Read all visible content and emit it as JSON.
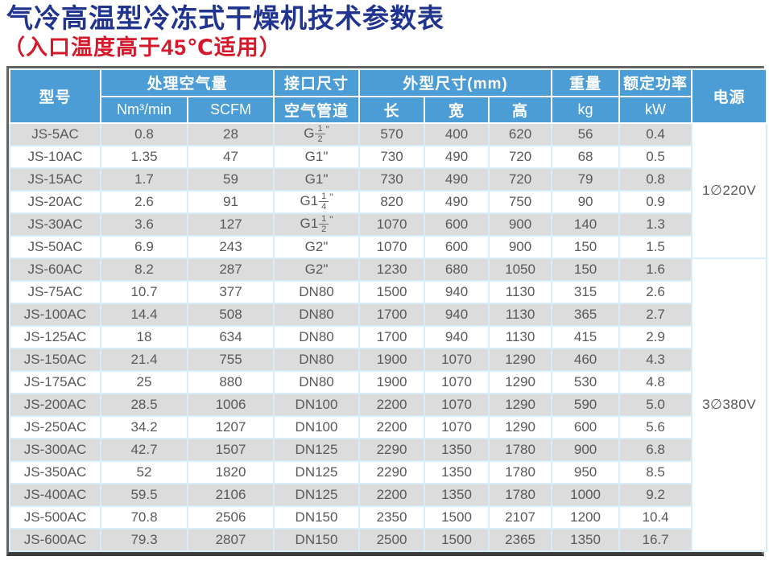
{
  "page": {
    "title": "气冷高温型冷冻式干燥机技术参数表",
    "subtitle": "（入口温度高于45℃适用）",
    "colors": {
      "title_blue": "#203490",
      "subtitle_red": "#d6182b",
      "header_blue": "#4c9cd5",
      "stripe_gray": "#dcdcdc",
      "body_text": "#595959",
      "cell_separator": "#d9edf9"
    }
  },
  "table": {
    "headers": {
      "model": "型号",
      "air_volume": "处理空气量",
      "air_volume_nm": "Nm³/min",
      "air_volume_scfm": "SCFM",
      "port_size": "接口尺寸",
      "air_pipe": "空气管道",
      "dimensions": "外型尺寸(mm)",
      "length": "长",
      "width": "宽",
      "height": "高",
      "weight": "重量",
      "weight_unit": "kg",
      "rated_power": "额定功率",
      "power_unit": "kW",
      "power_supply": "电源"
    },
    "rows": [
      {
        "model": "JS-5AC",
        "nm3": "0.8",
        "scfm": "28",
        "pipe": {
          "base": "G",
          "frac": "1/2"
        },
        "length": "570",
        "width": "400",
        "height": "620",
        "kg": "56",
        "kw": "0.4"
      },
      {
        "model": "JS-10AC",
        "nm3": "1.35",
        "scfm": "47",
        "pipe": {
          "base": "G1\""
        },
        "length": "730",
        "width": "490",
        "height": "720",
        "kg": "68",
        "kw": "0.5"
      },
      {
        "model": "JS-15AC",
        "nm3": "1.7",
        "scfm": "59",
        "pipe": {
          "base": "G1\""
        },
        "length": "730",
        "width": "490",
        "height": "720",
        "kg": "79",
        "kw": "0.8"
      },
      {
        "model": "JS-20AC",
        "nm3": "2.6",
        "scfm": "91",
        "pipe": {
          "base": "G1",
          "frac": "1/4"
        },
        "length": "820",
        "width": "490",
        "height": "750",
        "kg": "90",
        "kw": "0.9"
      },
      {
        "model": "JS-30AC",
        "nm3": "3.6",
        "scfm": "127",
        "pipe": {
          "base": "G1",
          "frac": "1/2"
        },
        "length": "1070",
        "width": "600",
        "height": "900",
        "kg": "140",
        "kw": "1.3"
      },
      {
        "model": "JS-50AC",
        "nm3": "6.9",
        "scfm": "243",
        "pipe": {
          "base": "G2\""
        },
        "length": "1070",
        "width": "600",
        "height": "900",
        "kg": "150",
        "kw": "1.5"
      },
      {
        "model": "JS-60AC",
        "nm3": "8.2",
        "scfm": "287",
        "pipe": {
          "base": "G2\""
        },
        "length": "1230",
        "width": "680",
        "height": "1050",
        "kg": "150",
        "kw": "1.6"
      },
      {
        "model": "JS-75AC",
        "nm3": "10.7",
        "scfm": "377",
        "pipe": {
          "base": "DN80"
        },
        "length": "1500",
        "width": "940",
        "height": "1130",
        "kg": "315",
        "kw": "2.6"
      },
      {
        "model": "JS-100AC",
        "nm3": "14.4",
        "scfm": "508",
        "pipe": {
          "base": "DN80"
        },
        "length": "1700",
        "width": "940",
        "height": "1130",
        "kg": "365",
        "kw": "2.7"
      },
      {
        "model": "JS-125AC",
        "nm3": "18",
        "scfm": "634",
        "pipe": {
          "base": "DN80"
        },
        "length": "1700",
        "width": "940",
        "height": "1130",
        "kg": "415",
        "kw": "2.9"
      },
      {
        "model": "JS-150AC",
        "nm3": "21.4",
        "scfm": "755",
        "pipe": {
          "base": "DN80"
        },
        "length": "1900",
        "width": "1070",
        "height": "1290",
        "kg": "460",
        "kw": "4.3"
      },
      {
        "model": "JS-175AC",
        "nm3": "25",
        "scfm": "880",
        "pipe": {
          "base": "DN80"
        },
        "length": "1900",
        "width": "1070",
        "height": "1290",
        "kg": "530",
        "kw": "4.8"
      },
      {
        "model": "JS-200AC",
        "nm3": "28.5",
        "scfm": "1006",
        "pipe": {
          "base": "DN100"
        },
        "length": "2200",
        "width": "1070",
        "height": "1290",
        "kg": "590",
        "kw": "5.0"
      },
      {
        "model": "JS-250AC",
        "nm3": "34.2",
        "scfm": "1207",
        "pipe": {
          "base": "DN100"
        },
        "length": "2200",
        "width": "1070",
        "height": "1290",
        "kg": "600",
        "kw": "5.6"
      },
      {
        "model": "JS-300AC",
        "nm3": "42.7",
        "scfm": "1507",
        "pipe": {
          "base": "DN125"
        },
        "length": "2290",
        "width": "1350",
        "height": "1780",
        "kg": "900",
        "kw": "6.8"
      },
      {
        "model": "JS-350AC",
        "nm3": "52",
        "scfm": "1820",
        "pipe": {
          "base": "DN125"
        },
        "length": "2290",
        "width": "1350",
        "height": "1780",
        "kg": "950",
        "kw": "8.5"
      },
      {
        "model": "JS-400AC",
        "nm3": "59.5",
        "scfm": "2106",
        "pipe": {
          "base": "DN125"
        },
        "length": "2200",
        "width": "1350",
        "height": "1780",
        "kg": "1000",
        "kw": "9.2"
      },
      {
        "model": "JS-500AC",
        "nm3": "70.8",
        "scfm": "2506",
        "pipe": {
          "base": "DN150"
        },
        "length": "2350",
        "width": "1500",
        "height": "2107",
        "kg": "1200",
        "kw": "10.4"
      },
      {
        "model": "JS-600AC",
        "nm3": "79.3",
        "scfm": "2807",
        "pipe": {
          "base": "DN150"
        },
        "length": "2500",
        "width": "1500",
        "height": "2365",
        "kg": "1350",
        "kw": "16.7"
      }
    ],
    "power_groups": [
      {
        "label": "1∅220V",
        "span": 6
      },
      {
        "label": "3∅380V",
        "span": 13
      }
    ]
  }
}
